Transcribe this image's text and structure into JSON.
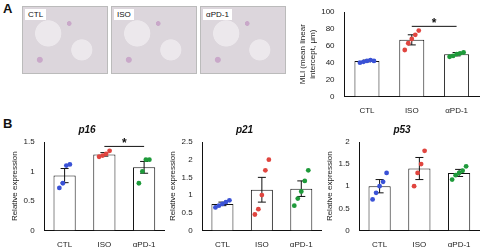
{
  "panel_labels": [
    "A",
    "B"
  ],
  "image_labels": [
    "CTL",
    "ISO",
    "αPD-1"
  ],
  "chart_data": [
    {
      "type": "bar",
      "y_label": "MLI (mean linear intercept, μm)",
      "categories": [
        "CTL",
        "ISO",
        "αPD-1"
      ],
      "values": [
        42,
        67,
        50
      ],
      "errors": [
        1,
        6,
        2
      ],
      "points": [
        [
          40,
          41,
          42,
          43,
          42
        ],
        [
          55,
          63,
          68,
          73,
          78
        ],
        [
          47,
          48,
          50,
          51,
          52
        ]
      ],
      "colors": [
        "#3a52d6",
        "#e0453f",
        "#1e9a3a"
      ],
      "ylim": [
        0,
        100
      ],
      "yticks": [
        0,
        20,
        40,
        60,
        80,
        100
      ],
      "grid": false,
      "annotations": [
        {
          "from": "ISO",
          "to": "αPD-1",
          "label": "*"
        }
      ]
    },
    {
      "type": "bar",
      "title": "p16",
      "y_label": "Relative expression",
      "categories": [
        "CTL",
        "ISO",
        "αPD-1"
      ],
      "values": [
        0.93,
        1.29,
        1.07
      ],
      "errors": [
        0.12,
        0.03,
        0.1
      ],
      "points": [
        [
          0.72,
          0.8,
          1.1,
          1.12
        ],
        [
          1.25,
          1.27,
          1.3,
          1.35
        ],
        [
          0.8,
          1.0,
          1.2,
          1.2
        ]
      ],
      "colors": [
        "#3a52d6",
        "#e0453f",
        "#1e9a3a"
      ],
      "ylim": [
        0,
        1.5
      ],
      "yticks": [
        0,
        0.5,
        1,
        1.5
      ],
      "grid": false,
      "annotations": [
        {
          "from": "ISO",
          "to": "αPD-1",
          "label": "*"
        }
      ]
    },
    {
      "type": "bar",
      "title": "p21",
      "y_label": "Relative expression",
      "categories": [
        "CTL",
        "ISO",
        "αPD-1"
      ],
      "values": [
        0.75,
        1.15,
        1.18
      ],
      "errors": [
        0.05,
        0.35,
        0.22
      ],
      "points": [
        [
          0.65,
          0.7,
          0.75,
          0.8,
          0.85
        ],
        [
          0.45,
          0.6,
          1.0,
          1.7,
          2.0
        ],
        [
          0.7,
          0.9,
          1.1,
          1.4,
          1.7
        ]
      ],
      "colors": [
        "#3a52d6",
        "#e0453f",
        "#1e9a3a"
      ],
      "ylim": [
        0,
        2.5
      ],
      "yticks": [
        0,
        0.5,
        1,
        1.5,
        2,
        2.5
      ],
      "grid": false
    },
    {
      "type": "bar",
      "title": "p53",
      "y_label": "Relative expression",
      "categories": [
        "CTL",
        "ISO",
        "αPD-1"
      ],
      "values": [
        1.0,
        1.4,
        1.3
      ],
      "errors": [
        0.15,
        0.25,
        0.08
      ],
      "points": [
        [
          0.7,
          0.85,
          1.0,
          1.1,
          1.3
        ],
        [
          1.0,
          1.3,
          1.5,
          1.8
        ],
        [
          1.15,
          1.25,
          1.3,
          1.35,
          1.45
        ]
      ],
      "colors": [
        "#3a52d6",
        "#e0453f",
        "#1e9a3a"
      ],
      "ylim": [
        0,
        2
      ],
      "yticks": [
        0,
        0.5,
        1,
        1.5,
        2
      ],
      "grid": false
    }
  ]
}
